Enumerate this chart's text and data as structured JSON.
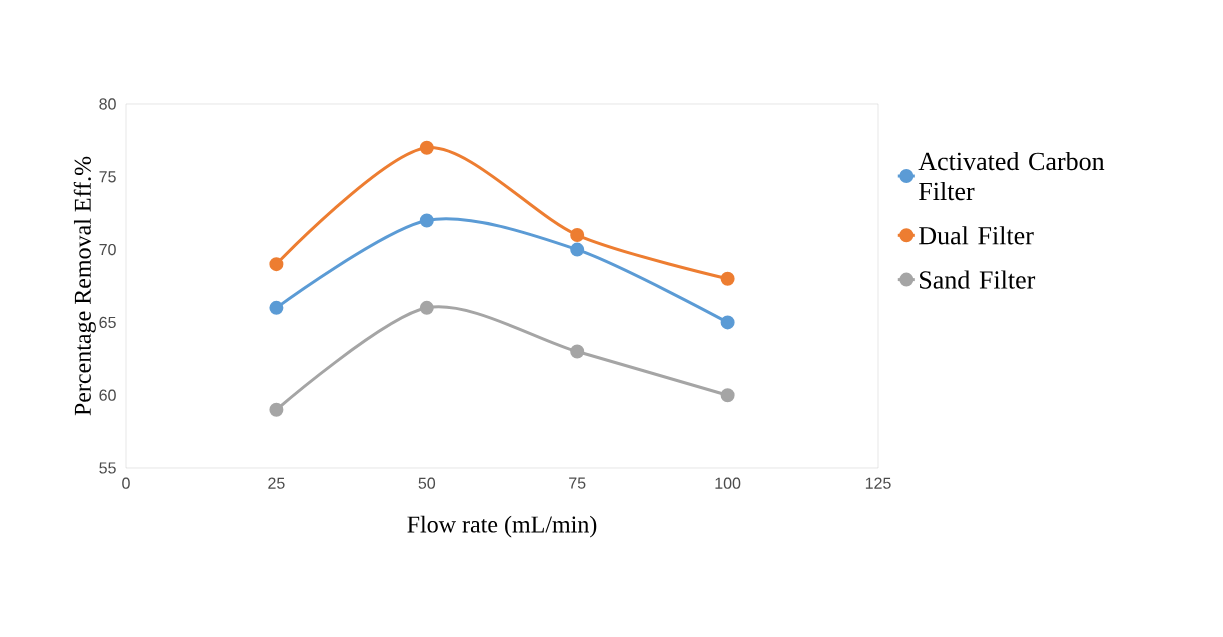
{
  "chart_data": {
    "type": "line",
    "xlabel": "Flow rate (mL/min)",
    "ylabel": "Percentage Removal Eff.%",
    "x": [
      25,
      50,
      75,
      100
    ],
    "series": [
      {
        "name": "Activated Carbon Filter",
        "color": "#5b9bd5",
        "values": [
          66,
          72,
          70,
          65
        ]
      },
      {
        "name": "Dual Filter",
        "color": "#ed7d31",
        "values": [
          69,
          77,
          71,
          68
        ]
      },
      {
        "name": "Sand Filter",
        "color": "#a5a5a5",
        "values": [
          59,
          66,
          63,
          60
        ]
      }
    ],
    "xlim": [
      0,
      125
    ],
    "ylim": [
      55,
      80
    ],
    "xticks": [
      0,
      25,
      50,
      75,
      100,
      125
    ],
    "yticks": [
      55,
      60,
      65,
      70,
      75,
      80
    ],
    "grid": false,
    "legend": "right",
    "marker": "circle",
    "line_style": "solid"
  }
}
